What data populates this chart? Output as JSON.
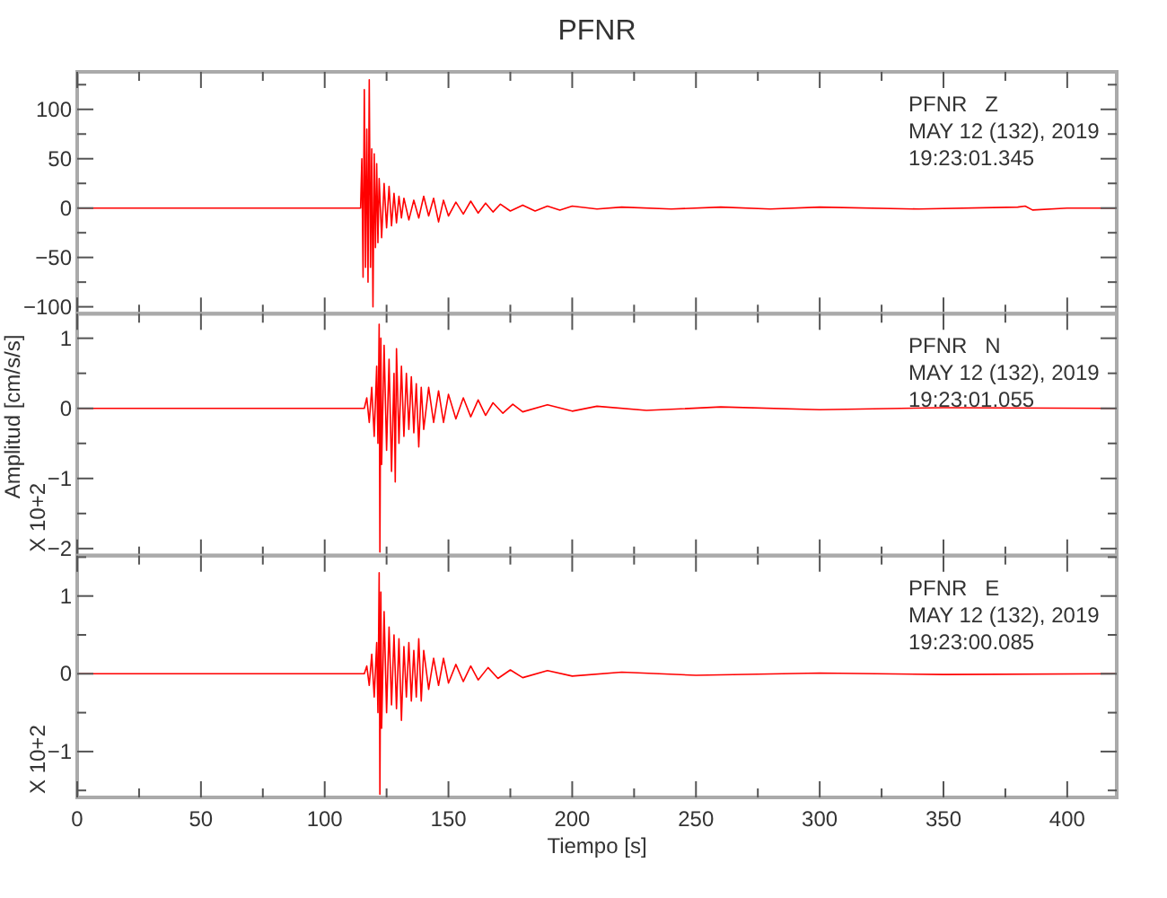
{
  "chart_data": [
    {
      "type": "line",
      "title": "PFNR",
      "tick_labels": "y",
      "grid": false,
      "xlim": [
        0,
        420
      ],
      "ylim": [
        -107,
        138
      ],
      "xticks": [
        0,
        {
          "value": 25,
          "label": null
        },
        50,
        {
          "value": 75,
          "label": null
        },
        100,
        {
          "value": 125,
          "label": null
        },
        150,
        {
          "value": 175,
          "label": null
        },
        200,
        {
          "value": 225,
          "label": null
        },
        250,
        {
          "value": 275,
          "label": null
        },
        300,
        {
          "value": 325,
          "label": null
        },
        350,
        {
          "value": 375,
          "label": null
        },
        400
      ],
      "yticks": [
        -100,
        {
          "value": -75,
          "label": null
        },
        -50,
        {
          "value": -25,
          "label": null
        },
        0,
        {
          "value": 25,
          "label": null
        },
        50,
        {
          "value": 75,
          "label": null
        },
        100,
        {
          "value": 125,
          "label": null
        }
      ],
      "annotations": [
        "PFNR   Z",
        "MAY 12 (132), 2019",
        "19:23:01.345"
      ],
      "series": [
        {
          "type": "line",
          "color": "#ff0000",
          "x": [
            0,
            50,
            100,
            114.5,
            115,
            115.5,
            116,
            116.5,
            117,
            117.5,
            118,
            118.5,
            119,
            119.5,
            120,
            120.5,
            121,
            121.5,
            122,
            123,
            124,
            125,
            126,
            127,
            128,
            129,
            130,
            131,
            132,
            134,
            136,
            138,
            140,
            142,
            144,
            146,
            148,
            150,
            153,
            156,
            159,
            162,
            165,
            168,
            171,
            175,
            180,
            185,
            190,
            195,
            200,
            210,
            220,
            240,
            260,
            280,
            300,
            340,
            380,
            383,
            386,
            400,
            420
          ],
          "values": [
            0,
            0,
            0,
            0,
            50,
            -70,
            120,
            -60,
            80,
            -75,
            130,
            -60,
            60,
            -100,
            55,
            -40,
            45,
            -35,
            30,
            -30,
            25,
            -20,
            22,
            -18,
            15,
            -15,
            12,
            -10,
            10,
            -12,
            8,
            -10,
            12,
            -8,
            10,
            -14,
            8,
            -8,
            6,
            -6,
            7,
            -5,
            5,
            -4,
            4,
            -3,
            3,
            -3,
            2,
            -2,
            2,
            -1,
            1,
            -1,
            1,
            -1,
            1,
            -1,
            1,
            2,
            -2,
            0,
            0
          ]
        }
      ]
    },
    {
      "type": "line",
      "ylabel": "Amplitud [cm/s/s]",
      "tick_labels": "y",
      "grid": false,
      "xlim": [
        0,
        420
      ],
      "ylim": [
        -2.1,
        1.35
      ],
      "xticks": [
        0,
        {
          "value": 25,
          "label": null
        },
        50,
        {
          "value": 75,
          "label": null
        },
        100,
        {
          "value": 125,
          "label": null
        },
        150,
        {
          "value": 175,
          "label": null
        },
        200,
        {
          "value": 225,
          "label": null
        },
        250,
        {
          "value": 275,
          "label": null
        },
        300,
        {
          "value": 325,
          "label": null
        },
        350,
        {
          "value": 375,
          "label": null
        },
        400
      ],
      "yticks": [
        -2,
        {
          "value": -1.5,
          "label": null
        },
        -1,
        {
          "value": -0.5,
          "label": null
        },
        0,
        {
          "value": 0.5,
          "label": null
        },
        1
      ],
      "annotations": [
        "PFNR   N",
        "MAY 12 (132), 2019",
        "19:23:01.055",
        "X 10+2"
      ],
      "series": [
        {
          "type": "line",
          "color": "#ff0000",
          "x": [
            0,
            50,
            100,
            116,
            117,
            118,
            119,
            120,
            121,
            121.5,
            122,
            122.3,
            122.7,
            123,
            124,
            125,
            126,
            127,
            128,
            128.5,
            129,
            130,
            131,
            132,
            133,
            134,
            135,
            136,
            137,
            138,
            139,
            140,
            142,
            144,
            146,
            148,
            150,
            153,
            156,
            159,
            162,
            165,
            168,
            172,
            176,
            180,
            190,
            200,
            210,
            230,
            260,
            300,
            350,
            420
          ],
          "values": [
            0,
            0,
            0,
            0,
            0.15,
            -0.2,
            0.3,
            -0.4,
            0.6,
            -0.5,
            1.2,
            -2.05,
            1.0,
            -0.8,
            0.9,
            -0.6,
            0.7,
            -0.9,
            0.5,
            -1.05,
            0.85,
            -0.5,
            0.6,
            -0.4,
            0.5,
            -0.3,
            0.45,
            -0.35,
            0.35,
            -0.55,
            0.3,
            -0.3,
            0.3,
            -0.2,
            0.25,
            -0.2,
            0.2,
            -0.15,
            0.15,
            -0.12,
            0.12,
            -0.1,
            0.08,
            -0.07,
            0.06,
            -0.05,
            0.05,
            -0.04,
            0.03,
            -0.03,
            0.02,
            -0.02,
            0.01,
            0
          ]
        }
      ]
    },
    {
      "type": "line",
      "xlabel": "Tiempo [s]",
      "grid": false,
      "xlim": [
        0,
        420
      ],
      "ylim": [
        -1.59,
        1.52
      ],
      "xticks": [
        0,
        {
          "value": 25,
          "label": null
        },
        50,
        {
          "value": 75,
          "label": null
        },
        100,
        {
          "value": 125,
          "label": null
        },
        150,
        {
          "value": 175,
          "label": null
        },
        200,
        {
          "value": 225,
          "label": null
        },
        250,
        {
          "value": 275,
          "label": null
        },
        300,
        {
          "value": 325,
          "label": null
        },
        350,
        {
          "value": 375,
          "label": null
        },
        400
      ],
      "yticks": [
        {
          "value": -1.5,
          "label": null
        },
        -1,
        {
          "value": -0.5,
          "label": null
        },
        0,
        {
          "value": 0.5,
          "label": null
        },
        1,
        {
          "value": 1.5,
          "label": null
        }
      ],
      "annotations": [
        "PFNR   E",
        "MAY 12 (132), 2019",
        "19:23:00.085",
        "X 10+2"
      ],
      "series": [
        {
          "type": "line",
          "color": "#ff0000",
          "x": [
            0,
            50,
            100,
            116,
            117,
            118,
            119,
            120,
            121,
            121.5,
            122,
            122.3,
            122.7,
            123,
            124,
            125,
            126,
            127,
            128,
            129,
            130,
            131,
            132,
            133,
            134,
            135,
            136,
            137,
            138,
            139,
            140,
            142,
            144,
            146,
            148,
            150,
            153,
            156,
            159,
            162,
            166,
            170,
            175,
            180,
            190,
            200,
            220,
            250,
            300,
            350,
            420
          ],
          "values": [
            0,
            0,
            0,
            0,
            0.1,
            -0.15,
            0.25,
            -0.3,
            0.4,
            -0.5,
            1.3,
            -1.55,
            1.05,
            -0.7,
            0.8,
            -0.5,
            0.6,
            -0.4,
            0.5,
            -0.45,
            0.45,
            -0.6,
            0.35,
            -0.3,
            0.4,
            -0.35,
            0.3,
            -0.3,
            0.45,
            -0.35,
            0.3,
            -0.2,
            0.2,
            -0.15,
            0.2,
            -0.12,
            0.12,
            -0.1,
            0.1,
            -0.08,
            0.08,
            -0.06,
            0.05,
            -0.05,
            0.04,
            -0.03,
            0.02,
            -0.02,
            0.01,
            -0.01,
            0
          ]
        }
      ]
    }
  ]
}
